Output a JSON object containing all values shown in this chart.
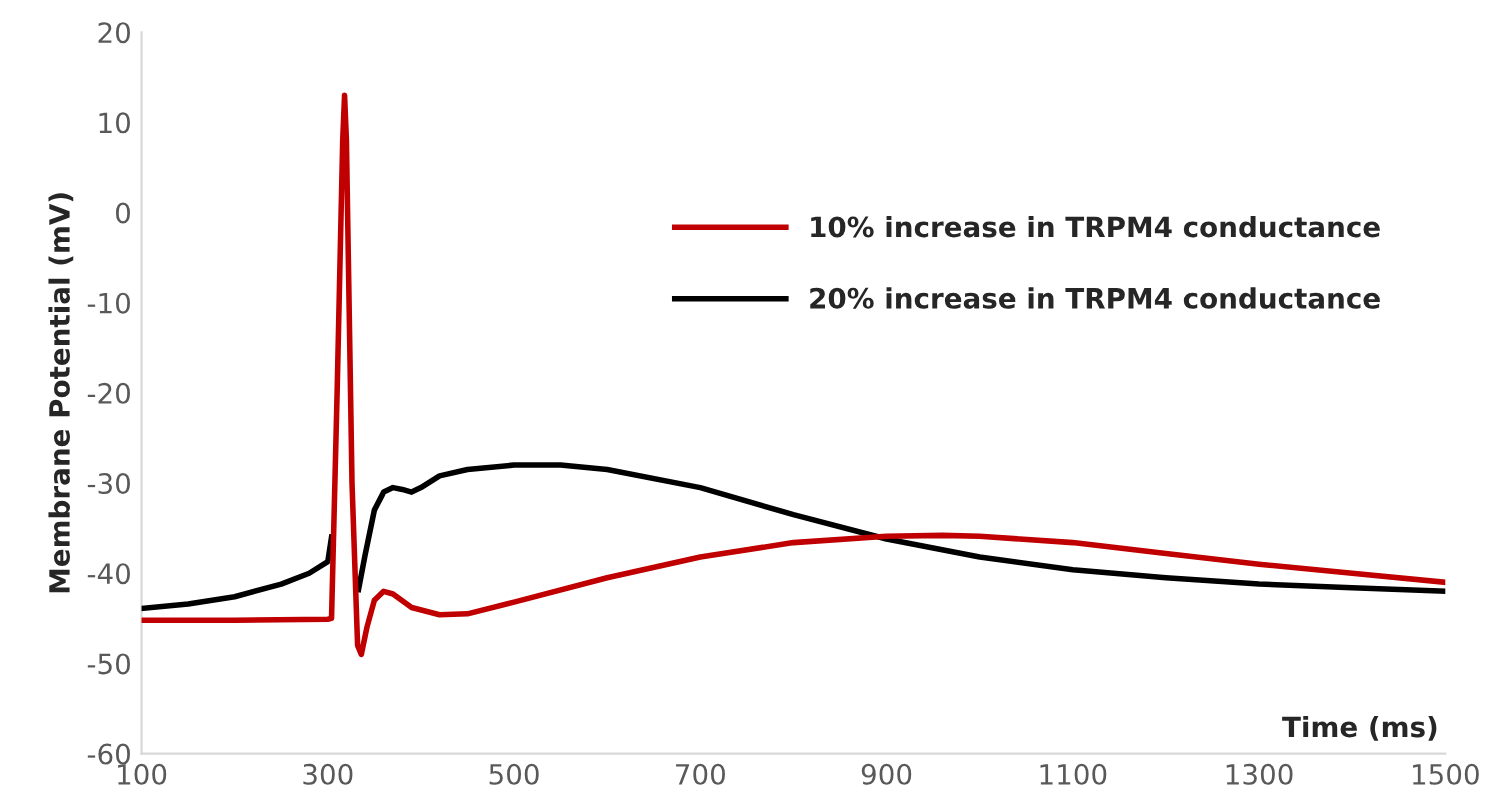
{
  "chart_data": {
    "type": "line",
    "xlabel": "Time (ms)",
    "ylabel": "Membrane Potential (mV)",
    "xlim": [
      100,
      1500
    ],
    "xticks": [
      100,
      300,
      500,
      700,
      900,
      1100,
      1300,
      1500
    ],
    "ylim": [
      -60,
      20
    ],
    "yticks": [
      -60,
      -50,
      -40,
      -30,
      -20,
      -10,
      0,
      10,
      20
    ],
    "grid": false,
    "legend": "top right",
    "marker": "none",
    "line_style": "solid",
    "series": [
      {
        "name": "10% increase in TRPM4 conductance",
        "color": "#c00000",
        "x": [
          100,
          200,
          300,
          304,
          310,
          316,
          318,
          320,
          326,
          332,
          336,
          342,
          350,
          360,
          370,
          390,
          420,
          450,
          500,
          600,
          700,
          800,
          900,
          960,
          1000,
          1100,
          1200,
          1300,
          1400,
          1500
        ],
        "values": [
          -45.2,
          -45.2,
          -45.1,
          -45,
          -20,
          8,
          13,
          8,
          -30,
          -48,
          -49,
          -46,
          -43,
          -42,
          -42.3,
          -43.8,
          -44.6,
          -44.5,
          -43.2,
          -40.5,
          -38.2,
          -36.6,
          -35.9,
          -35.8,
          -35.9,
          -36.6,
          -37.8,
          -39,
          -40,
          -41
        ]
      },
      {
        "name": "20% increase in TRPM4 conductance",
        "color": "#000000",
        "x": [
          100,
          150,
          200,
          250,
          280,
          300,
          304,
          310,
          316,
          318,
          320,
          326,
          333,
          340,
          350,
          360,
          370,
          380,
          390,
          400,
          420,
          450,
          500,
          550,
          600,
          700,
          800,
          900,
          1000,
          1100,
          1200,
          1300,
          1400,
          1500
        ],
        "values": [
          -43.9,
          -43.4,
          -42.6,
          -41.2,
          -40,
          -38.7,
          -36,
          null,
          null,
          null,
          null,
          null,
          -41.8,
          -38,
          -33,
          -31,
          -30.5,
          -30.7,
          -31,
          -30.5,
          -29.2,
          -28.5,
          -28,
          -28,
          -28.5,
          -30.5,
          -33.5,
          -36.2,
          -38.2,
          -39.6,
          -40.5,
          -41.2,
          -41.6,
          -42
        ]
      }
    ]
  }
}
